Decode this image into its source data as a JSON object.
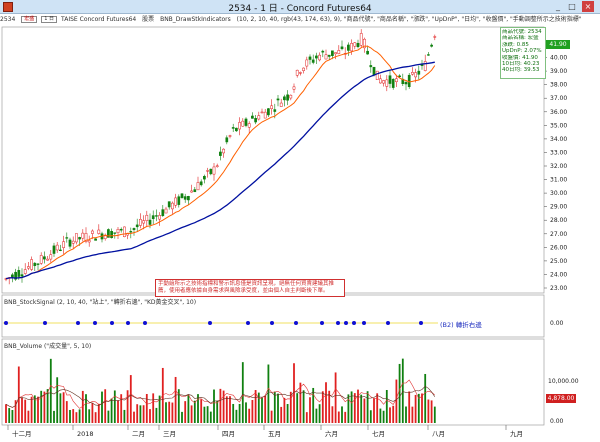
{
  "window": {
    "title": "2534 - 1 日 - Concord Futures64",
    "min_label": "_",
    "max_label": "□",
    "close_label": "×"
  },
  "infobar": {
    "symbol": "2534",
    "name": "宏盛",
    "period": "1 日",
    "exchange": "TAISE Concord Futures64",
    "unit": "股票",
    "indicator": "BNB_DrawStkIndicators",
    "params": "(10, 2, 10, 40, rgb(43, 174, 63), 9), \"商品代號\", \"商品名稱\", \"漲跌\", \"UpDnP\", \"日均\", \"收盤價\", \"手動調整所示之技術指標\""
  },
  "quote": {
    "code_label": "商品代號:",
    "code": "2534",
    "name_label": "商品名稱:",
    "name": "宏盛",
    "change_label": "漲跌:",
    "change": "0.85",
    "updnp_label": "UpDnP:",
    "updnp": "2.07%",
    "close_label": "收盤價:",
    "close": "41.90",
    "ma10_label": "10日均:",
    "ma10": "40.23",
    "ma40_label": "40日均:",
    "ma40": "39.53"
  },
  "price_tag": "41.90",
  "disclaimer": "手動繪所示之技術指標和警示訊息僅是資訊呈現，絕無任何買賣建議其推薦，使用者應依據自身需求與風險承受度，並由個人自主判斷後下單。",
  "signal": {
    "label": "BNB_StockSignal",
    "params": "(2, 10, 40, \"站上\", \"轉折右邊\", \"KD黃金交叉\", 10)",
    "text": "(B2) 轉折右邊",
    "axis_value": "0.00"
  },
  "volume": {
    "label": "BNB_Volume",
    "params": "(\"成交量\", 5, 10)",
    "axis_values": [
      "10,000.00",
      "0.00"
    ],
    "tag": "4,878.00"
  },
  "price_axis": [
    "23.00",
    "24.00",
    "25.00",
    "26.00",
    "27.00",
    "28.00",
    "29.00",
    "30.00",
    "31.00",
    "32.00",
    "33.00",
    "34.00",
    "35.00",
    "36.00",
    "37.00",
    "38.00",
    "39.00",
    "40.00",
    "41.00"
  ],
  "months": [
    "十二月",
    "2018",
    "二月",
    "三月",
    "四月",
    "五月",
    "六月",
    "七月",
    "八月",
    "九月"
  ],
  "colors": {
    "up": "#e02020",
    "down": "#108010",
    "ma10": "#ff6000",
    "ma40": "#0010a0",
    "signal_line": "#f0e060",
    "signal_dot": "#1010d0"
  }
}
